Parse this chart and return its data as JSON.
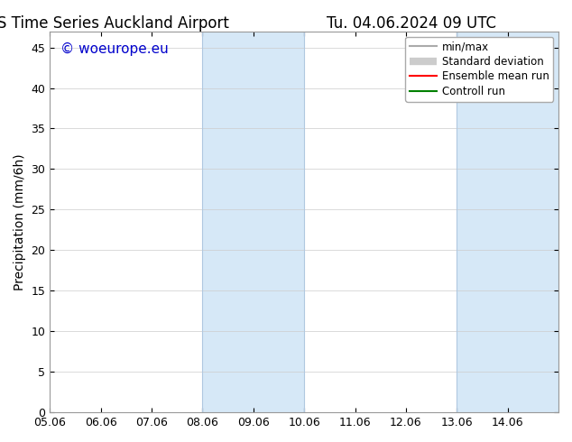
{
  "title_left": "ENS Time Series Auckland Airport",
  "title_right": "Tu. 04.06.2024 09 UTC",
  "ylabel": "Precipitation (mm/6h)",
  "ylim": [
    0,
    47
  ],
  "yticks": [
    0,
    5,
    10,
    15,
    20,
    25,
    30,
    35,
    40,
    45
  ],
  "xlim_start": 0,
  "xlim_end": 10,
  "xtick_labels": [
    "05.06",
    "06.06",
    "07.06",
    "08.06",
    "09.06",
    "10.06",
    "11.06",
    "12.06",
    "13.06",
    "14.06"
  ],
  "xtick_positions": [
    0,
    1,
    2,
    3,
    4,
    5,
    6,
    7,
    8,
    9
  ],
  "shaded_bands": [
    {
      "x_start": 3,
      "x_end": 5,
      "color": "#d6e8f7"
    },
    {
      "x_start": 8,
      "x_end": 10,
      "color": "#d6e8f7"
    }
  ],
  "band_top_line_color": "#b0c8e0",
  "watermark_text": "© woeurope.eu",
  "watermark_color": "#0000cc",
  "watermark_fontsize": 11,
  "legend_entries": [
    {
      "label": "min/max",
      "color": "#aaaaaa",
      "linestyle": "-",
      "linewidth": 1.5
    },
    {
      "label": "Standard deviation",
      "color": "#cccccc",
      "linestyle": "-",
      "linewidth": 6
    },
    {
      "label": "Ensemble mean run",
      "color": "#ff0000",
      "linestyle": "-",
      "linewidth": 1.5
    },
    {
      "label": "Controll run",
      "color": "#008000",
      "linestyle": "-",
      "linewidth": 1.5
    }
  ],
  "background_color": "#ffffff",
  "plot_bg_color": "#ffffff",
  "grid_color": "#cccccc",
  "title_fontsize": 12,
  "axis_label_fontsize": 10,
  "tick_fontsize": 9,
  "font_family": "DejaVu Sans"
}
